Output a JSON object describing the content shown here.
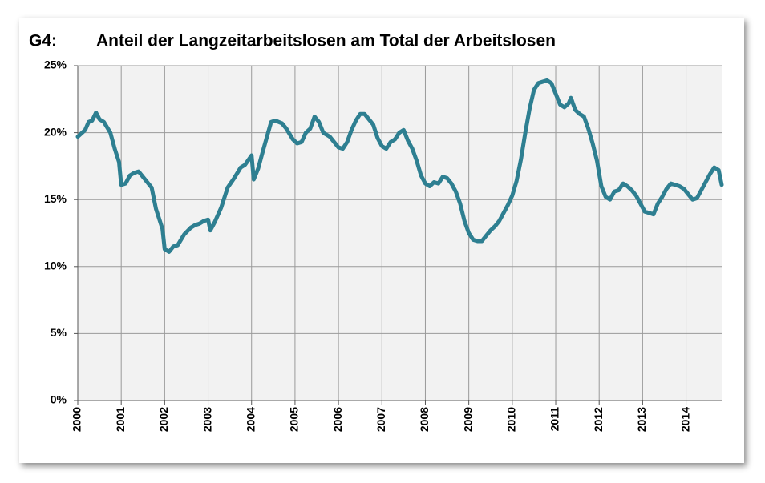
{
  "chart_data": {
    "type": "line",
    "label": "G4:",
    "title": "Anteil der Langzeitarbeitslosen am Total der Arbeitslosen",
    "x": [
      2000.0,
      2000.17,
      2000.25,
      2000.33,
      2000.42,
      2000.5,
      2000.6,
      2000.75,
      2000.85,
      2000.95,
      2001.0,
      2001.1,
      2001.2,
      2001.3,
      2001.4,
      2001.5,
      2001.7,
      2001.8,
      2001.9,
      2001.95,
      2002.0,
      2002.1,
      2002.2,
      2002.3,
      2002.45,
      2002.6,
      2002.7,
      2002.8,
      2002.9,
      2003.0,
      2003.05,
      2003.15,
      2003.3,
      2003.45,
      2003.6,
      2003.75,
      2003.85,
      2004.0,
      2004.05,
      2004.15,
      2004.25,
      2004.45,
      2004.55,
      2004.7,
      2004.8,
      2004.95,
      2005.05,
      2005.15,
      2005.25,
      2005.35,
      2005.45,
      2005.55,
      2005.65,
      2005.8,
      2005.9,
      2006.0,
      2006.1,
      2006.2,
      2006.3,
      2006.4,
      2006.5,
      2006.6,
      2006.7,
      2006.8,
      2006.9,
      2007.0,
      2007.1,
      2007.2,
      2007.3,
      2007.4,
      2007.5,
      2007.6,
      2007.7,
      2007.8,
      2007.9,
      2008.0,
      2008.1,
      2008.2,
      2008.3,
      2008.4,
      2008.5,
      2008.6,
      2008.7,
      2008.8,
      2008.9,
      2009.0,
      2009.1,
      2009.2,
      2009.3,
      2009.4,
      2009.5,
      2009.6,
      2009.7,
      2009.8,
      2009.9,
      2010.0,
      2010.1,
      2010.2,
      2010.3,
      2010.4,
      2010.5,
      2010.6,
      2010.7,
      2010.8,
      2010.9,
      2011.0,
      2011.1,
      2011.2,
      2011.3,
      2011.35,
      2011.45,
      2011.55,
      2011.65,
      2011.75,
      2011.85,
      2011.95,
      2012.05,
      2012.15,
      2012.25,
      2012.35,
      2012.45,
      2012.55,
      2012.65,
      2012.75,
      2012.85,
      2012.95,
      2013.05,
      2013.15,
      2013.25,
      2013.35,
      2013.45,
      2013.55,
      2013.65,
      2013.75,
      2013.85,
      2013.95,
      2014.05,
      2014.15,
      2014.25,
      2014.35,
      2014.45,
      2014.55,
      2014.65,
      2014.75,
      2014.82
    ],
    "series": [
      {
        "color": "#2e7f91",
        "values": [
          19.7,
          20.2,
          20.8,
          20.9,
          21.5,
          21.0,
          20.8,
          20.0,
          18.8,
          17.8,
          16.1,
          16.2,
          16.8,
          17.0,
          17.1,
          16.7,
          15.9,
          14.3,
          13.3,
          12.8,
          11.3,
          11.1,
          11.5,
          11.6,
          12.4,
          12.9,
          13.1,
          13.2,
          13.4,
          13.5,
          12.7,
          13.3,
          14.4,
          15.9,
          16.6,
          17.4,
          17.6,
          18.3,
          16.5,
          17.3,
          18.5,
          20.8,
          20.9,
          20.7,
          20.3,
          19.5,
          19.2,
          19.3,
          20.0,
          20.3,
          21.2,
          20.8,
          20.0,
          19.7,
          19.3,
          18.9,
          18.8,
          19.3,
          20.2,
          20.9,
          21.4,
          21.4,
          21.0,
          20.6,
          19.6,
          19.0,
          18.8,
          19.3,
          19.5,
          20.0,
          20.2,
          19.4,
          18.8,
          17.9,
          16.8,
          16.2,
          16.0,
          16.3,
          16.2,
          16.7,
          16.6,
          16.2,
          15.6,
          14.7,
          13.4,
          12.5,
          12.0,
          11.9,
          11.9,
          12.3,
          12.7,
          13.0,
          13.4,
          14.0,
          14.6,
          15.3,
          16.4,
          18.0,
          20.0,
          21.8,
          23.2,
          23.7,
          23.8,
          23.9,
          23.7,
          22.9,
          22.1,
          21.9,
          22.2,
          22.6,
          21.7,
          21.4,
          21.2,
          20.3,
          19.2,
          17.9,
          16.0,
          15.2,
          15.0,
          15.6,
          15.7,
          16.2,
          16.0,
          15.7,
          15.3,
          14.7,
          14.1,
          14.0,
          13.9,
          14.7,
          15.2,
          15.8,
          16.2,
          16.1,
          16.0,
          15.8,
          15.4,
          15.0,
          15.1,
          15.7,
          16.3,
          16.9,
          17.4,
          17.2,
          16.1
        ]
      }
    ],
    "xlim": [
      2000,
      2014.82
    ],
    "xticks": [
      2000,
      2001,
      2002,
      2003,
      2004,
      2005,
      2006,
      2007,
      2008,
      2009,
      2010,
      2011,
      2012,
      2013,
      2014
    ],
    "ylim": [
      0,
      25
    ],
    "yticks": [
      {
        "value": 0,
        "label": "0%"
      },
      {
        "value": 5,
        "label": "5%"
      },
      {
        "value": 10,
        "label": "10%"
      },
      {
        "value": 15,
        "label": "15%"
      },
      {
        "value": 20,
        "label": "20%"
      },
      {
        "value": 25,
        "label": "25%"
      }
    ],
    "grid": true
  }
}
